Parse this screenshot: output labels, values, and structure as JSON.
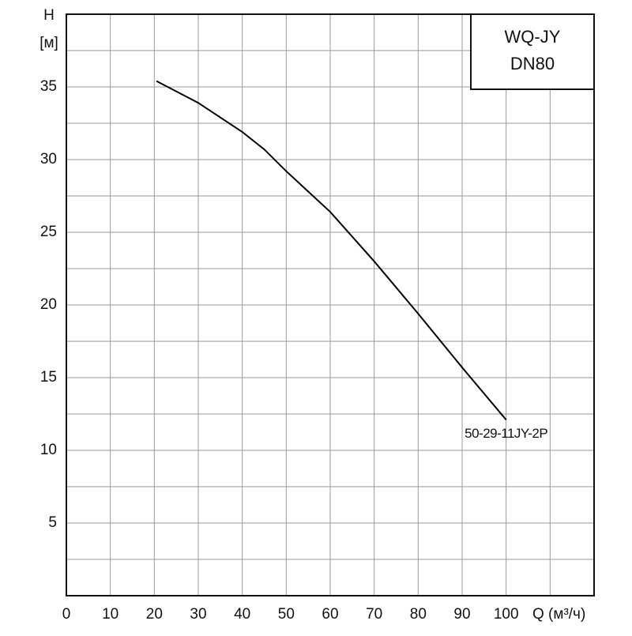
{
  "chart_data": {
    "type": "line",
    "ylabel": "H",
    "yunit": "[м]",
    "xlabel": "Q (м³/ч)",
    "model_lines": [
      "WQ-JY",
      "DN80"
    ],
    "x": [
      20.5,
      30,
      40,
      45,
      50,
      60,
      70,
      80,
      90,
      100
    ],
    "series": [
      {
        "name": "50-29-11JY-2P",
        "color": "#000000",
        "values": [
          35.4,
          33.9,
          31.9,
          30.7,
          29.2,
          26.4,
          23.0,
          19.4,
          15.7,
          12.1
        ]
      }
    ],
    "xlim": [
      0,
      120
    ],
    "xticks": [
      0,
      10,
      20,
      30,
      40,
      50,
      60,
      70,
      80,
      90,
      100
    ],
    "xgrid": [
      10,
      20,
      30,
      40,
      50,
      60,
      70,
      80,
      90,
      100,
      110
    ],
    "ylim": [
      0,
      40
    ],
    "yticks": [
      5,
      10,
      15,
      20,
      25,
      30,
      35
    ],
    "ygrid": [
      2.5,
      5,
      7.5,
      10,
      12.5,
      15,
      17.5,
      20,
      22.5,
      25,
      27.5,
      30,
      32.5,
      35,
      37.5
    ],
    "grid": true
  }
}
